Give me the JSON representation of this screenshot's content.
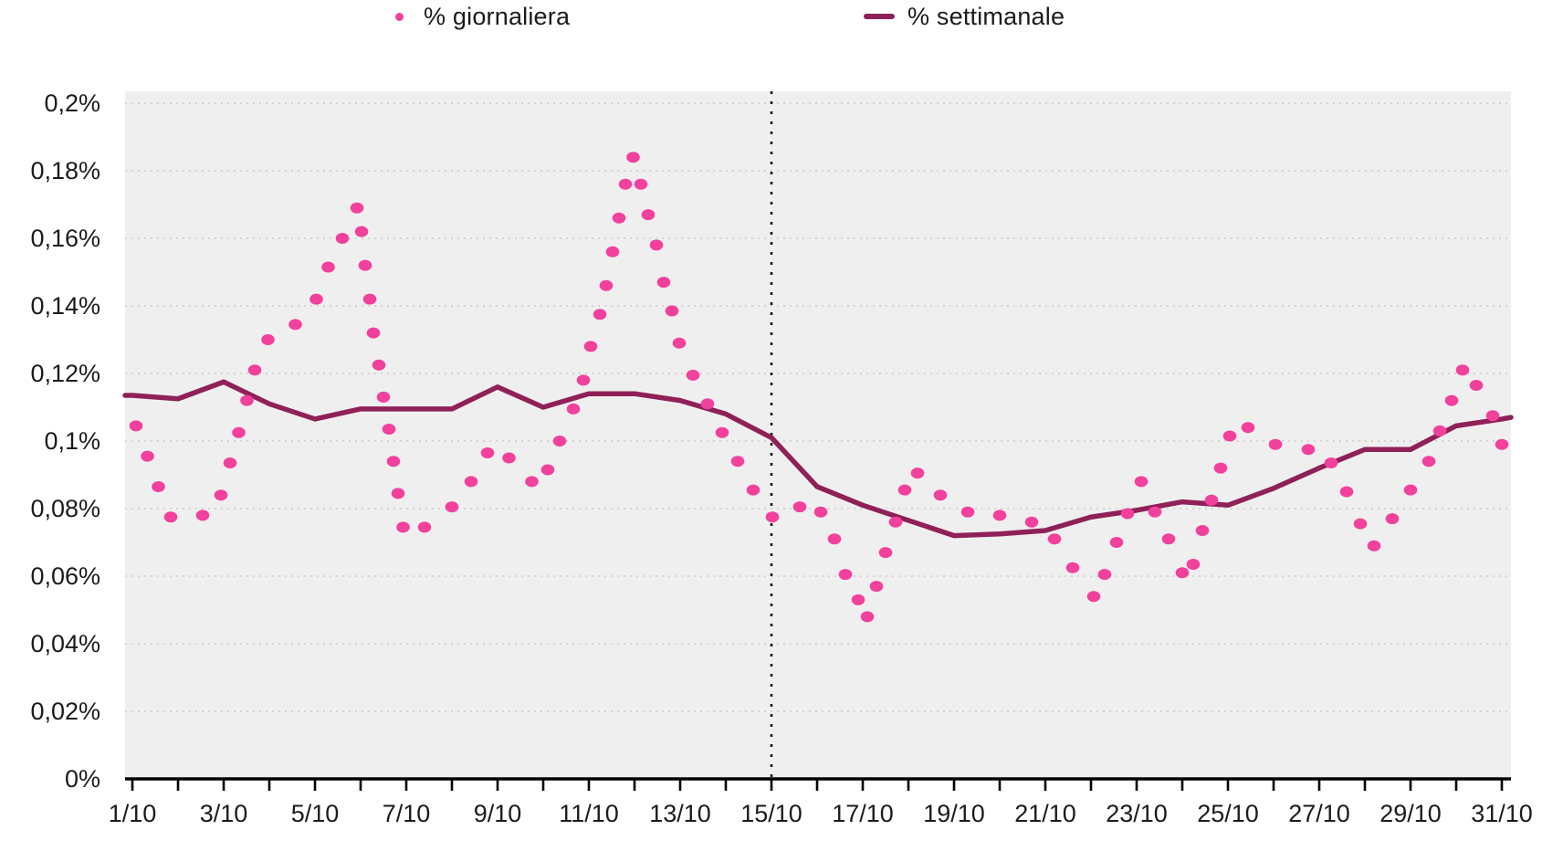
{
  "chart_data": {
    "type": "scatter",
    "title": "",
    "xlabel": "",
    "ylabel": "",
    "y_unit": "%",
    "x_unit": "date (day/month, October)",
    "x_domain_days": [
      1,
      31
    ],
    "ylim": [
      0,
      0.2
    ],
    "y_tick_step": 0.02,
    "y_tick_labels": [
      "0%",
      "0,02%",
      "0,04%",
      "0,06%",
      "0,08%",
      "0,1%",
      "0,12%",
      "0,14%",
      "0,16%",
      "0,18%",
      "0,2%"
    ],
    "x_tick_labels": [
      "1/10",
      "3/10",
      "5/10",
      "7/10",
      "9/10",
      "11/10",
      "13/10",
      "15/10",
      "17/10",
      "19/10",
      "21/10",
      "23/10",
      "25/10",
      "27/10",
      "29/10",
      "31/10"
    ],
    "x_ticks_every_day": true,
    "grid": "horizontal-dotted",
    "legend_position": "top-center",
    "legend": [
      {
        "label": "% giornaliera",
        "marker": "dot",
        "color": "#F2409D"
      },
      {
        "label": "% settimanale",
        "marker": "line",
        "color": "#8F2158"
      }
    ],
    "annotations": [
      {
        "type": "vline",
        "x_day": 15,
        "style": "dotted",
        "color": "#1a1a1a"
      }
    ],
    "series": [
      {
        "name": "% giornaliera",
        "type": "scatter",
        "color": "#F2409D",
        "points": [
          [
            1.08,
            0.1045
          ],
          [
            1.33,
            0.0955
          ],
          [
            1.57,
            0.0865
          ],
          [
            1.84,
            0.0775
          ],
          [
            2.54,
            0.078
          ],
          [
            2.94,
            0.084
          ],
          [
            3.14,
            0.0935
          ],
          [
            3.33,
            0.1025
          ],
          [
            3.51,
            0.112
          ],
          [
            3.68,
            0.121
          ],
          [
            3.97,
            0.13
          ],
          [
            4.57,
            0.1345
          ],
          [
            5.03,
            0.142
          ],
          [
            5.29,
            0.1515
          ],
          [
            5.6,
            0.16
          ],
          [
            5.92,
            0.169
          ],
          [
            6.02,
            0.162
          ],
          [
            6.1,
            0.152
          ],
          [
            6.2,
            0.142
          ],
          [
            6.28,
            0.132
          ],
          [
            6.4,
            0.1225
          ],
          [
            6.5,
            0.113
          ],
          [
            6.62,
            0.1035
          ],
          [
            6.72,
            0.094
          ],
          [
            6.82,
            0.0845
          ],
          [
            6.93,
            0.0745
          ],
          [
            7.4,
            0.0745
          ],
          [
            8.0,
            0.0805
          ],
          [
            8.42,
            0.088
          ],
          [
            8.78,
            0.0965
          ],
          [
            9.25,
            0.095
          ],
          [
            9.75,
            0.088
          ],
          [
            10.1,
            0.0915
          ],
          [
            10.36,
            0.1
          ],
          [
            10.66,
            0.1095
          ],
          [
            10.88,
            0.118
          ],
          [
            11.04,
            0.128
          ],
          [
            11.24,
            0.1375
          ],
          [
            11.38,
            0.146
          ],
          [
            11.52,
            0.156
          ],
          [
            11.66,
            0.166
          ],
          [
            11.8,
            0.176
          ],
          [
            11.97,
            0.184
          ],
          [
            12.14,
            0.176
          ],
          [
            12.3,
            0.167
          ],
          [
            12.48,
            0.158
          ],
          [
            12.64,
            0.147
          ],
          [
            12.82,
            0.1385
          ],
          [
            12.98,
            0.129
          ],
          [
            13.28,
            0.1195
          ],
          [
            13.6,
            0.111
          ],
          [
            13.92,
            0.1025
          ],
          [
            14.26,
            0.094
          ],
          [
            14.6,
            0.0855
          ],
          [
            15.02,
            0.0775
          ],
          [
            15.62,
            0.0805
          ],
          [
            16.08,
            0.079
          ],
          [
            16.38,
            0.071
          ],
          [
            16.62,
            0.0605
          ],
          [
            16.9,
            0.053
          ],
          [
            17.1,
            0.048
          ],
          [
            17.3,
            0.057
          ],
          [
            17.5,
            0.067
          ],
          [
            17.72,
            0.076
          ],
          [
            17.92,
            0.0855
          ],
          [
            18.2,
            0.0905
          ],
          [
            18.7,
            0.084
          ],
          [
            19.3,
            0.079
          ],
          [
            20.0,
            0.078
          ],
          [
            20.7,
            0.076
          ],
          [
            21.2,
            0.071
          ],
          [
            21.6,
            0.0625
          ],
          [
            22.06,
            0.054
          ],
          [
            22.3,
            0.0605
          ],
          [
            22.56,
            0.07
          ],
          [
            22.8,
            0.0785
          ],
          [
            23.1,
            0.088
          ],
          [
            23.4,
            0.079
          ],
          [
            23.7,
            0.071
          ],
          [
            24.0,
            0.061
          ],
          [
            24.24,
            0.0635
          ],
          [
            24.44,
            0.0735
          ],
          [
            24.64,
            0.0825
          ],
          [
            24.84,
            0.092
          ],
          [
            25.04,
            0.1015
          ],
          [
            25.44,
            0.104
          ],
          [
            26.04,
            0.099
          ],
          [
            26.76,
            0.0975
          ],
          [
            27.26,
            0.0935
          ],
          [
            27.6,
            0.085
          ],
          [
            27.9,
            0.0755
          ],
          [
            28.2,
            0.069
          ],
          [
            28.6,
            0.077
          ],
          [
            29.0,
            0.0855
          ],
          [
            29.4,
            0.094
          ],
          [
            29.64,
            0.103
          ],
          [
            29.9,
            0.112
          ],
          [
            30.14,
            0.121
          ],
          [
            30.44,
            0.1165
          ],
          [
            30.8,
            0.1075
          ],
          [
            31.0,
            0.099
          ]
        ]
      },
      {
        "name": "% settimanale",
        "type": "line",
        "color": "#8F2158",
        "points": [
          [
            0.84,
            0.1135
          ],
          [
            1,
            0.1135
          ],
          [
            2,
            0.1125
          ],
          [
            3,
            0.1175
          ],
          [
            4,
            0.111
          ],
          [
            5,
            0.1065
          ],
          [
            6,
            0.1095
          ],
          [
            7,
            0.1095
          ],
          [
            8,
            0.1095
          ],
          [
            9,
            0.116
          ],
          [
            10,
            0.11
          ],
          [
            11,
            0.114
          ],
          [
            12,
            0.114
          ],
          [
            13,
            0.112
          ],
          [
            14,
            0.108
          ],
          [
            15,
            0.101
          ],
          [
            16,
            0.0865
          ],
          [
            17,
            0.081
          ],
          [
            18,
            0.0765
          ],
          [
            19,
            0.072
          ],
          [
            20,
            0.0725
          ],
          [
            21,
            0.0735
          ],
          [
            22,
            0.0775
          ],
          [
            23,
            0.0795
          ],
          [
            24,
            0.082
          ],
          [
            25,
            0.081
          ],
          [
            26,
            0.086
          ],
          [
            27,
            0.092
          ],
          [
            28,
            0.0975
          ],
          [
            29,
            0.0975
          ],
          [
            30,
            0.1045
          ],
          [
            31,
            0.1065
          ],
          [
            31.2,
            0.107
          ]
        ]
      }
    ],
    "plot_background": "#F0EFEF",
    "gridline_color": "#CBCBCB",
    "axis_color": "#000000",
    "text_color": "#1b1b1b"
  }
}
